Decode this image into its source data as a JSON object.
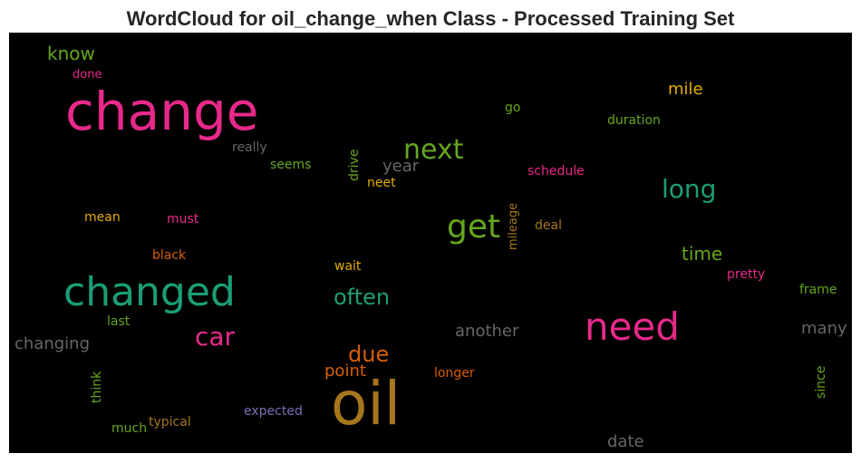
{
  "chart_data": {
    "type": "wordcloud",
    "title": "WordCloud for oil_change_when Class - Processed Training Set",
    "background": "#000000",
    "words": [
      {
        "text": "know",
        "color": "#66a61e"
      },
      {
        "text": "done",
        "color": "#e7298a"
      },
      {
        "text": "change",
        "color": "#e7298a"
      },
      {
        "text": "really",
        "color": "#666666"
      },
      {
        "text": "seems",
        "color": "#66a61e"
      },
      {
        "text": "drive",
        "color": "#66a61e"
      },
      {
        "text": "next",
        "color": "#66a61e"
      },
      {
        "text": "year",
        "color": "#666666"
      },
      {
        "text": "neet",
        "color": "#e6ab02"
      },
      {
        "text": "schedule",
        "color": "#e7298a"
      },
      {
        "text": "mile",
        "color": "#e6ab02"
      },
      {
        "text": "go",
        "color": "#66a61e"
      },
      {
        "text": "duration",
        "color": "#66a61e"
      },
      {
        "text": "long",
        "color": "#1b9e77"
      },
      {
        "text": "get",
        "color": "#66a61e"
      },
      {
        "text": "mileage",
        "color": "#a6761d"
      },
      {
        "text": "deal",
        "color": "#a6761d"
      },
      {
        "text": "mean",
        "color": "#e6ab02"
      },
      {
        "text": "must",
        "color": "#e7298a"
      },
      {
        "text": "black",
        "color": "#d95f02"
      },
      {
        "text": "time",
        "color": "#66a61e"
      },
      {
        "text": "wait",
        "color": "#e6ab02"
      },
      {
        "text": "pretty",
        "color": "#e7298a"
      },
      {
        "text": "changed",
        "color": "#1b9e77"
      },
      {
        "text": "often",
        "color": "#1b9e77"
      },
      {
        "text": "frame",
        "color": "#66a61e"
      },
      {
        "text": "last",
        "color": "#66a61e"
      },
      {
        "text": "car",
        "color": "#e7298a"
      },
      {
        "text": "need",
        "color": "#e7298a"
      },
      {
        "text": "another",
        "color": "#666666"
      },
      {
        "text": "many",
        "color": "#666666"
      },
      {
        "text": "changing",
        "color": "#666666"
      },
      {
        "text": "due",
        "color": "#d95f02"
      },
      {
        "text": "point",
        "color": "#d95f02"
      },
      {
        "text": "longer",
        "color": "#d95f02"
      },
      {
        "text": "oil",
        "color": "#a6761d"
      },
      {
        "text": "think",
        "color": "#66a61e"
      },
      {
        "text": "since",
        "color": "#66a61e"
      },
      {
        "text": "expected",
        "color": "#7570b3"
      },
      {
        "text": "typical",
        "color": "#a6761d"
      },
      {
        "text": "much",
        "color": "#66a61e"
      },
      {
        "text": "date",
        "color": "#666666"
      }
    ]
  }
}
